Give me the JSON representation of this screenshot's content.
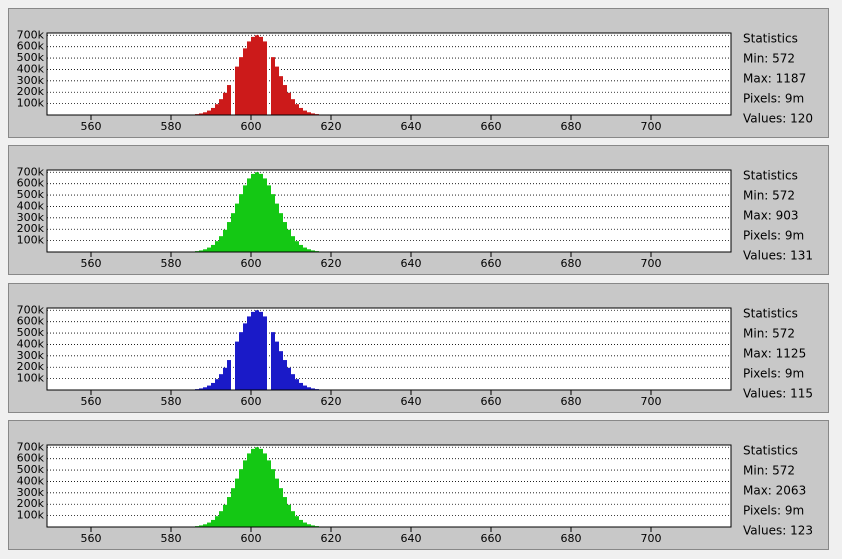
{
  "chart_data": [
    {
      "type": "histogram",
      "color": "#cc1a1a",
      "bins": [
        584,
        585,
        586,
        587,
        588,
        589,
        590,
        591,
        592,
        593,
        594,
        595,
        596,
        597,
        598,
        599,
        600,
        601,
        602,
        603,
        604,
        605,
        606,
        607,
        608,
        609,
        610,
        611,
        612,
        613,
        614,
        615,
        616,
        617,
        618,
        619,
        620,
        621
      ],
      "values": [
        2200,
        4200,
        7800,
        13900,
        23800,
        39000,
        62000,
        95000,
        139000,
        195000,
        263000,
        0,
        425000,
        508000,
        585000,
        646000,
        686000,
        700000,
        686000,
        646000,
        0,
        508000,
        425000,
        341000,
        263000,
        195000,
        139000,
        95000,
        62000,
        39000,
        24000,
        14000,
        8000,
        4000,
        2000,
        1000,
        500
      ],
      "xlim": [
        549,
        720
      ],
      "xticks": [
        560,
        580,
        600,
        620,
        640,
        660,
        680,
        700
      ],
      "ylim": [
        0,
        720000
      ],
      "yticks": [
        {
          "value": 100000,
          "label": "100k"
        },
        {
          "value": 200000,
          "label": "200k"
        },
        {
          "value": 300000,
          "label": "300k"
        },
        {
          "value": 400000,
          "label": "400k"
        },
        {
          "value": 500000,
          "label": "500k"
        },
        {
          "value": 600000,
          "label": "600k"
        },
        {
          "value": 700000,
          "label": "700k"
        }
      ],
      "grid": true,
      "stats_title": "Statistics",
      "stats": [
        "Min: 572",
        "Max: 1187",
        "Pixels: 9m",
        "Values: 120"
      ]
    },
    {
      "type": "histogram",
      "color": "#14c814",
      "bins": [
        584,
        585,
        586,
        587,
        588,
        589,
        590,
        591,
        592,
        593,
        594,
        595,
        596,
        597,
        598,
        599,
        600,
        601,
        602,
        603,
        604,
        605,
        606,
        607,
        608,
        609,
        610,
        611,
        612,
        613,
        614,
        615,
        616,
        617,
        618,
        619,
        620,
        621
      ],
      "values": [
        2200,
        4200,
        7800,
        13900,
        23800,
        39000,
        62000,
        95000,
        139000,
        195000,
        263000,
        341000,
        425000,
        508000,
        585000,
        646000,
        686000,
        700000,
        686000,
        646000,
        585000,
        508000,
        425000,
        341000,
        263000,
        195000,
        139000,
        95000,
        62000,
        39000,
        24000,
        14000,
        8000,
        4000,
        2000,
        1000,
        500
      ],
      "xlim": [
        549,
        720
      ],
      "xticks": [
        560,
        580,
        600,
        620,
        640,
        660,
        680,
        700
      ],
      "ylim": [
        0,
        720000
      ],
      "yticks": [
        {
          "value": 100000,
          "label": "100k"
        },
        {
          "value": 200000,
          "label": "200k"
        },
        {
          "value": 300000,
          "label": "300k"
        },
        {
          "value": 400000,
          "label": "400k"
        },
        {
          "value": 500000,
          "label": "500k"
        },
        {
          "value": 600000,
          "label": "600k"
        },
        {
          "value": 700000,
          "label": "700k"
        }
      ],
      "grid": true,
      "stats_title": "Statistics",
      "stats": [
        "Min: 572",
        "Max: 903",
        "Pixels: 9m",
        "Values: 131"
      ]
    },
    {
      "type": "histogram",
      "color": "#1a1ac8",
      "bins": [
        584,
        585,
        586,
        587,
        588,
        589,
        590,
        591,
        592,
        593,
        594,
        595,
        596,
        597,
        598,
        599,
        600,
        601,
        602,
        603,
        604,
        605,
        606,
        607,
        608,
        609,
        610,
        611,
        612,
        613,
        614,
        615,
        616,
        617,
        618,
        619,
        620,
        621
      ],
      "values": [
        2200,
        4200,
        7800,
        13900,
        23800,
        39000,
        62000,
        95000,
        139000,
        195000,
        263000,
        0,
        425000,
        508000,
        585000,
        646000,
        686000,
        700000,
        686000,
        646000,
        0,
        508000,
        425000,
        341000,
        263000,
        195000,
        139000,
        95000,
        62000,
        39000,
        24000,
        14000,
        8000,
        4000,
        2000,
        1000,
        500
      ],
      "xlim": [
        549,
        720
      ],
      "xticks": [
        560,
        580,
        600,
        620,
        640,
        660,
        680,
        700
      ],
      "ylim": [
        0,
        720000
      ],
      "yticks": [
        {
          "value": 100000,
          "label": "100k"
        },
        {
          "value": 200000,
          "label": "200k"
        },
        {
          "value": 300000,
          "label": "300k"
        },
        {
          "value": 400000,
          "label": "400k"
        },
        {
          "value": 500000,
          "label": "500k"
        },
        {
          "value": 600000,
          "label": "600k"
        },
        {
          "value": 700000,
          "label": "700k"
        }
      ],
      "grid": true,
      "stats_title": "Statistics",
      "stats": [
        "Min: 572",
        "Max: 1125",
        "Pixels: 9m",
        "Values: 115"
      ]
    },
    {
      "type": "histogram",
      "color": "#14c814",
      "bins": [
        584,
        585,
        586,
        587,
        588,
        589,
        590,
        591,
        592,
        593,
        594,
        595,
        596,
        597,
        598,
        599,
        600,
        601,
        602,
        603,
        604,
        605,
        606,
        607,
        608,
        609,
        610,
        611,
        612,
        613,
        614,
        615,
        616,
        617,
        618,
        619,
        620,
        621
      ],
      "values": [
        2200,
        4200,
        7800,
        13900,
        23800,
        39000,
        62000,
        95000,
        139000,
        195000,
        263000,
        341000,
        425000,
        508000,
        585000,
        646000,
        686000,
        700000,
        686000,
        646000,
        585000,
        508000,
        425000,
        341000,
        263000,
        195000,
        139000,
        95000,
        62000,
        39000,
        24000,
        14000,
        8000,
        4000,
        2000,
        1000,
        500
      ],
      "xlim": [
        549,
        720
      ],
      "xticks": [
        560,
        580,
        600,
        620,
        640,
        660,
        680,
        700
      ],
      "ylim": [
        0,
        720000
      ],
      "yticks": [
        {
          "value": 100000,
          "label": "100k"
        },
        {
          "value": 200000,
          "label": "200k"
        },
        {
          "value": 300000,
          "label": "300k"
        },
        {
          "value": 400000,
          "label": "400k"
        },
        {
          "value": 500000,
          "label": "500k"
        },
        {
          "value": 600000,
          "label": "600k"
        },
        {
          "value": 700000,
          "label": "700k"
        }
      ],
      "grid": true,
      "stats_title": "Statistics",
      "stats": [
        "Min: 572",
        "Max: 2063",
        "Pixels: 9m",
        "Values: 123"
      ]
    }
  ]
}
